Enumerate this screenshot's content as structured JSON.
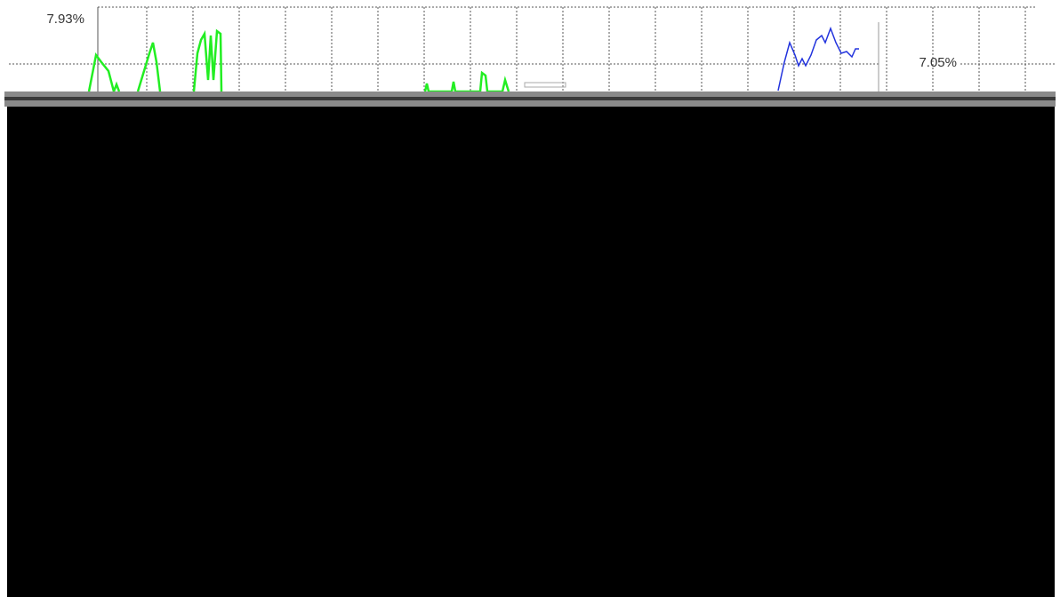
{
  "axis_labels": {
    "left_top": "7.93%",
    "right_mid": "7.05%"
  }
}
